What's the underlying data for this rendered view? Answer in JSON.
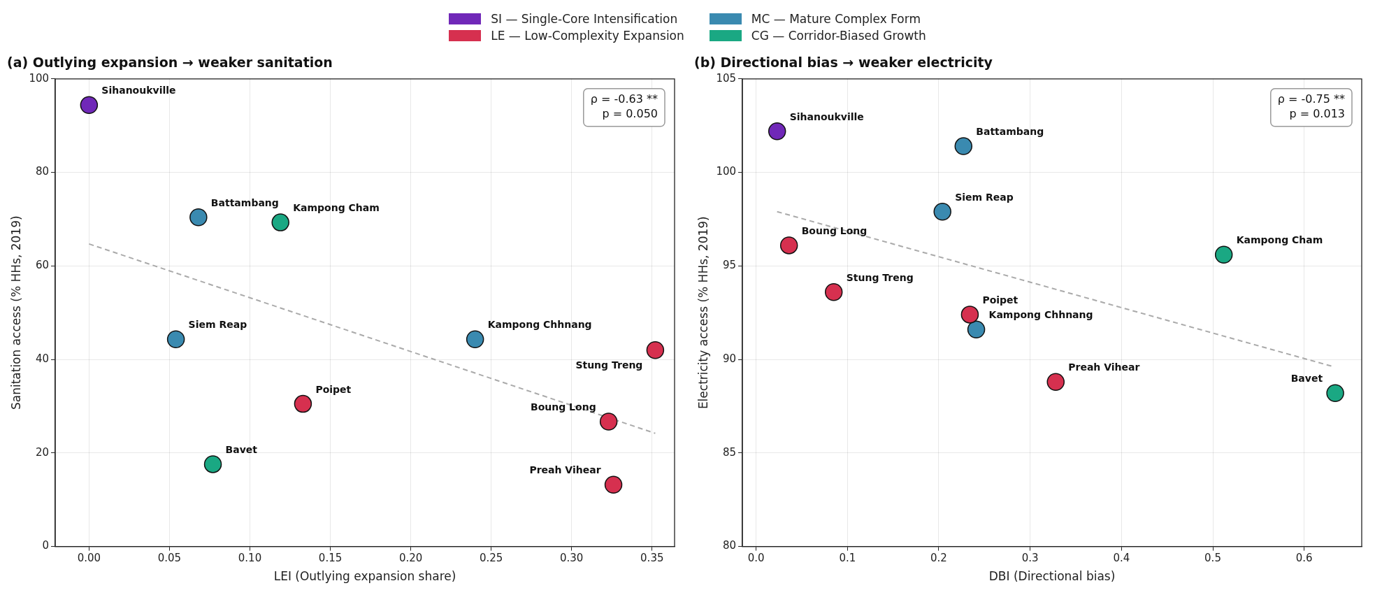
{
  "chart_data": [
    {
      "type": "scatter",
      "title": "(a) Outlying expansion → weaker sanitation",
      "xlabel": "LEI (Outlying expansion share)",
      "ylabel": "Sanitation access (% HHs, 2019)",
      "xlim": [
        -0.021,
        0.364
      ],
      "ylim": [
        0,
        100
      ],
      "xticks": [
        {
          "value": 0,
          "label": "0.00"
        },
        {
          "value": 0.05,
          "label": "0.05"
        },
        {
          "value": 0.1,
          "label": "0.10"
        },
        {
          "value": 0.15,
          "label": "0.15"
        },
        {
          "value": 0.2,
          "label": "0.20"
        },
        {
          "value": 0.25,
          "label": "0.25"
        },
        {
          "value": 0.3,
          "label": "0.30"
        },
        {
          "value": 0.35,
          "label": "0.35"
        }
      ],
      "yticks": [
        0,
        20,
        40,
        60,
        80,
        100
      ],
      "grid": true,
      "legend": "top",
      "marker": "circle",
      "line_style": "dashed",
      "series": [
        {
          "name": "SI — Single-Core Intensification",
          "color": "#7028b8",
          "x": [
            0.0
          ],
          "values": [
            94.4
          ]
        },
        {
          "name": "LE — Low-Complexity Expansion",
          "color": "#d6304f",
          "x": [
            0.352,
            0.323,
            0.326,
            0.133
          ],
          "values": [
            42.0,
            26.7,
            13.2,
            30.5
          ]
        },
        {
          "name": "MC — Mature Complex Form",
          "color": "#3a8ab0",
          "x": [
            0.068,
            0.054,
            0.24
          ],
          "values": [
            70.4,
            44.3,
            44.3
          ]
        },
        {
          "name": "CG — Corridor-Biased Growth",
          "color": "#1aa883",
          "x": [
            0.119,
            0.077
          ],
          "values": [
            69.3,
            17.6
          ]
        },
        {
          "type": "line",
          "color": "#aaaaaa",
          "marker": "none",
          "x": [
            0.0,
            0.352
          ],
          "values": [
            64.7,
            24.2
          ]
        }
      ],
      "annotations": [
        "ρ = -0.63 **",
        "p = 0.050",
        {
          "text": "Sihanoukville",
          "x": 0.0,
          "y": 94.4
        },
        {
          "text": "Battambang",
          "x": 0.068,
          "y": 70.4
        },
        {
          "text": "Kampong Cham",
          "x": 0.119,
          "y": 69.3
        },
        {
          "text": "Siem Reap",
          "x": 0.054,
          "y": 44.3
        },
        {
          "text": "Kampong Chhnang",
          "x": 0.24,
          "y": 44.3
        },
        {
          "text": "Stung Treng",
          "x": 0.352,
          "y": 42.0
        },
        {
          "text": "Poipet",
          "x": 0.133,
          "y": 30.5
        },
        {
          "text": "Boung Long",
          "x": 0.323,
          "y": 26.7
        },
        {
          "text": "Bavet",
          "x": 0.077,
          "y": 17.6
        },
        {
          "text": "Preah Vihear",
          "x": 0.326,
          "y": 13.2
        }
      ]
    },
    {
      "type": "scatter",
      "title": "(b) Directional bias → weaker electricity",
      "xlabel": "DBI (Directional bias)",
      "ylabel": "Electricity access (% HHs, 2019)",
      "xlim": [
        -0.015,
        0.663
      ],
      "ylim": [
        80,
        105
      ],
      "xticks": [
        {
          "value": 0,
          "label": "0.0"
        },
        0.1,
        0.2,
        0.3,
        0.4,
        0.5,
        0.6
      ],
      "yticks": [
        80,
        85,
        90,
        95,
        100,
        105
      ],
      "grid": true,
      "marker": "circle",
      "line_style": "dashed",
      "series": [
        {
          "color": "#7028b8",
          "x": [
            0.023
          ],
          "values": [
            102.2
          ]
        },
        {
          "color": "#d6304f",
          "x": [
            0.036,
            0.085,
            0.234,
            0.328
          ],
          "values": [
            96.1,
            93.6,
            92.4,
            88.8
          ]
        },
        {
          "color": "#3a8ab0",
          "x": [
            0.227,
            0.204,
            0.241
          ],
          "values": [
            101.4,
            97.9,
            91.6
          ]
        },
        {
          "color": "#1aa883",
          "x": [
            0.512,
            0.634
          ],
          "values": [
            95.6,
            88.2
          ]
        },
        {
          "type": "line",
          "color": "#aaaaaa",
          "marker": "none",
          "x": [
            0.023,
            0.633
          ],
          "values": [
            97.9,
            89.6
          ]
        }
      ],
      "annotations": [
        "ρ = -0.75 **",
        "p = 0.013",
        {
          "text": "Sihanoukville",
          "x": 0.023,
          "y": 102.2
        },
        {
          "text": "Battambang",
          "x": 0.227,
          "y": 101.4
        },
        {
          "text": "Siem Reap",
          "x": 0.204,
          "y": 97.9
        },
        {
          "text": "Boung Long",
          "x": 0.036,
          "y": 96.1
        },
        {
          "text": "Kampong Cham",
          "x": 0.512,
          "y": 95.6
        },
        {
          "text": "Stung Treng",
          "x": 0.085,
          "y": 93.6
        },
        {
          "text": "Poipet",
          "x": 0.234,
          "y": 92.4
        },
        {
          "text": "Kampong Chhnang",
          "x": 0.241,
          "y": 91.6
        },
        {
          "text": "Preah Vihear",
          "x": 0.328,
          "y": 88.8
        },
        {
          "text": "Bavet",
          "x": 0.634,
          "y": 88.2
        }
      ]
    }
  ]
}
